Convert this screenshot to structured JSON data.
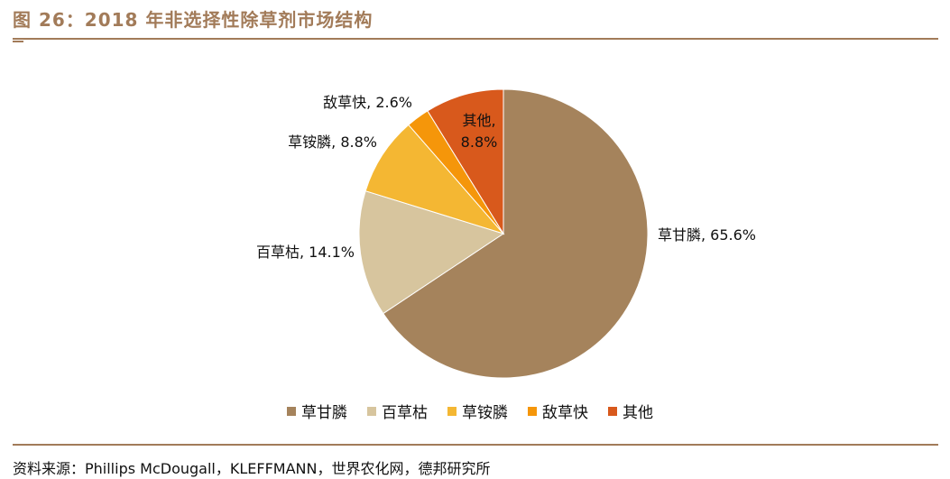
{
  "title": "图 26：2018 年非选择性除草剂市场结构",
  "source": "资料来源：Phillips McDougall，KLEFFMANN，世界农化网，德邦研究所",
  "colors": {
    "accent": "#A27B59"
  },
  "chart_data": {
    "type": "pie",
    "start_angle": "12 o'clock",
    "direction": "clockwise",
    "legend_position": "bottom",
    "slices": [
      {
        "name": "草甘膦",
        "value": 65.6,
        "label": "草甘膦, 65.6%",
        "color": "#A5835C"
      },
      {
        "name": "百草枯",
        "value": 14.1,
        "label": "百草枯, 14.1%",
        "color": "#D7C59E"
      },
      {
        "name": "草铵膦",
        "value": 8.8,
        "label": "草铵膦, 8.8%",
        "color": "#F4B733"
      },
      {
        "name": "敌草快",
        "value": 2.6,
        "label": "敌草快, 2.6%",
        "color": "#F5960A"
      },
      {
        "name": "其他",
        "value": 8.8,
        "label": "其他, 8.8%",
        "label_lines": [
          "其他,",
          "8.8%"
        ],
        "color": "#D8591C"
      }
    ]
  }
}
